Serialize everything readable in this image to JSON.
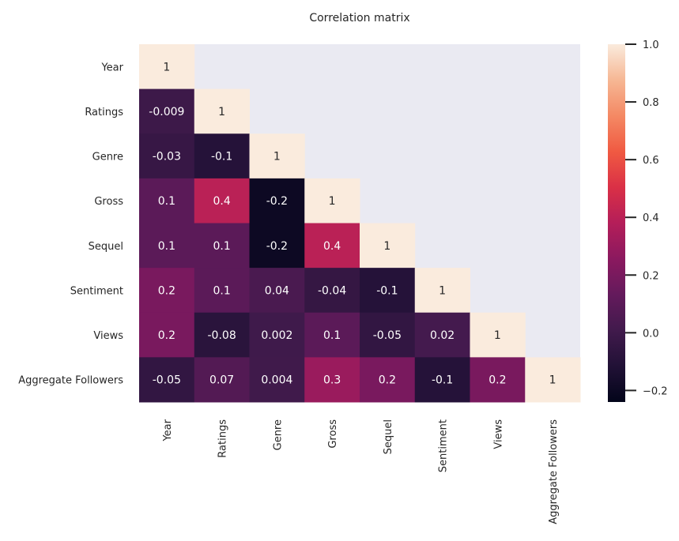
{
  "chart_data": {
    "type": "heatmap",
    "title": "Correlation matrix",
    "xlabel": "",
    "ylabel": "",
    "variables": [
      "Year",
      "Ratings",
      "Genre",
      "Gross",
      "Sequel",
      "Sentiment",
      "Views",
      "Aggregate Followers"
    ],
    "values": [
      [
        1
      ],
      [
        -0.009,
        1
      ],
      [
        -0.03,
        -0.1,
        1
      ],
      [
        0.1,
        0.4,
        -0.2,
        1
      ],
      [
        0.1,
        0.1,
        -0.2,
        0.4,
        1
      ],
      [
        0.2,
        0.1,
        0.04,
        -0.04,
        -0.1,
        1
      ],
      [
        0.2,
        -0.08,
        0.002,
        0.1,
        -0.05,
        0.02,
        1
      ],
      [
        -0.05,
        0.07,
        0.004,
        0.3,
        0.2,
        -0.1,
        0.2,
        1
      ]
    ],
    "mask": "upper-triangle",
    "colormap": "rocket",
    "masked_cell_color": "#eaeaf2",
    "colorbar": {
      "range": [
        -0.24,
        1.0
      ],
      "ticks": [
        -0.2,
        0.0,
        0.2,
        0.4,
        0.6,
        0.8,
        1.0
      ],
      "tick_labels": [
        "−0.2",
        "0.0",
        "0.2",
        "0.4",
        "0.6",
        "0.8",
        "1.0"
      ]
    }
  }
}
